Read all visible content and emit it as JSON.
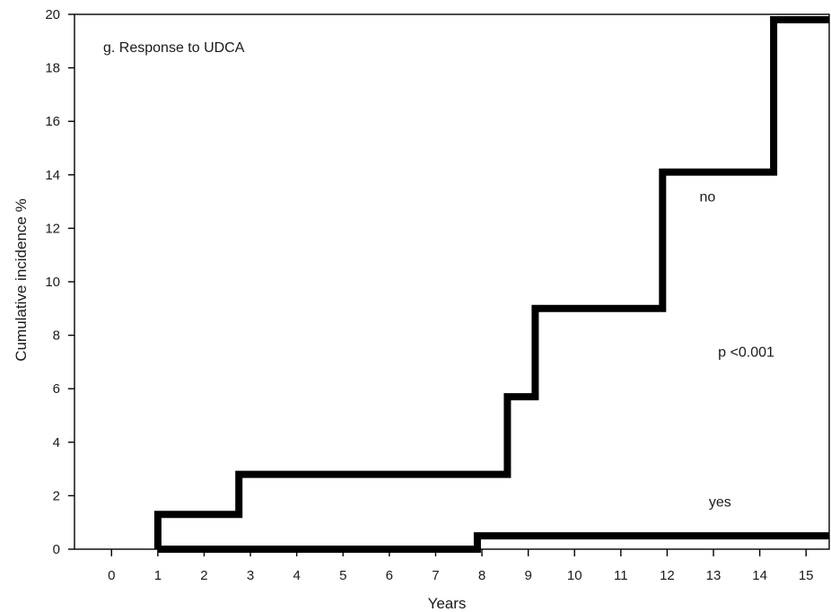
{
  "chart_data": {
    "type": "line",
    "step": true,
    "title": "g. Response to UDCA",
    "xlabel": "Years",
    "ylabel": "Cumulative incidence %",
    "xlim": [
      -0.8,
      15.5
    ],
    "ylim": [
      0,
      20
    ],
    "xticks": [
      0,
      1,
      2,
      3,
      4,
      5,
      6,
      7,
      8,
      9,
      10,
      11,
      12,
      13,
      14,
      15
    ],
    "yticks": [
      0,
      2,
      4,
      6,
      8,
      10,
      12,
      14,
      16,
      18,
      20
    ],
    "grid": false,
    "series": [
      {
        "name": "no",
        "x": [
          1.0,
          1.0,
          2.75,
          2.75,
          8.55,
          8.55,
          9.15,
          9.15,
          11.9,
          11.9,
          14.3,
          14.3,
          15.5
        ],
        "y": [
          0,
          1.3,
          1.3,
          2.8,
          2.8,
          5.7,
          5.7,
          9.0,
          9.0,
          14.1,
          14.1,
          19.8,
          19.8
        ]
      },
      {
        "name": "yes",
        "x": [
          1.0,
          7.9,
          7.9,
          15.5
        ],
        "y": [
          0,
          0,
          0.5,
          0.5
        ]
      }
    ],
    "annotations": [
      {
        "text": "no",
        "x": 12.7,
        "y": 13.0
      },
      {
        "text": "p <0.001",
        "x": 13.1,
        "y": 7.2
      },
      {
        "text": "yes",
        "x": 12.9,
        "y": 1.6
      }
    ]
  }
}
